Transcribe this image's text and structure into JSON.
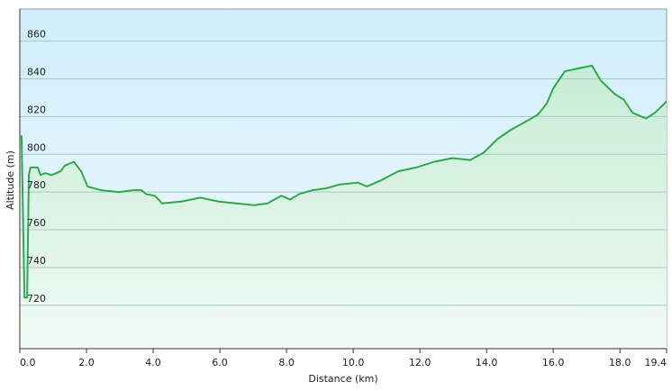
{
  "chart_data": {
    "type": "area",
    "x_label": "Distance  (km)",
    "y_label": "Altitude (m)",
    "x": [
      0.05,
      0.14,
      0.22,
      0.27,
      0.32,
      0.54,
      0.62,
      0.76,
      0.95,
      1.22,
      1.35,
      1.62,
      1.84,
      2.03,
      2.43,
      2.97,
      3.38,
      3.65,
      3.78,
      4.05,
      4.27,
      4.86,
      5.41,
      5.95,
      6.49,
      7.03,
      7.43,
      7.84,
      8.11,
      8.38,
      8.78,
      9.19,
      9.59,
      10.14,
      10.41,
      10.81,
      11.35,
      11.89,
      12.43,
      12.97,
      13.51,
      13.92,
      14.32,
      14.73,
      15.14,
      15.54,
      15.81,
      16.0,
      16.35,
      16.62,
      16.89,
      17.16,
      17.43,
      17.84,
      18.11,
      18.38,
      18.78,
      19.05,
      19.4
    ],
    "series": [
      {
        "name": "Altitude",
        "color": "#2eaa4a",
        "values": [
          810,
          724,
          724,
          789,
          793,
          793,
          789,
          790,
          789,
          791,
          794,
          796,
          791,
          783,
          781,
          780,
          781,
          781,
          779,
          778,
          774,
          775,
          777,
          775,
          774,
          773,
          774,
          778,
          776,
          779,
          781,
          782,
          784,
          785,
          783,
          786,
          791,
          793,
          796,
          798,
          797,
          801,
          808,
          813,
          817,
          821,
          827,
          835,
          844,
          845,
          846,
          847,
          839,
          832,
          829,
          822,
          819,
          822,
          828
        ]
      }
    ],
    "xlim": [
      0,
      19.4
    ],
    "xticks": [
      {
        "value": 0,
        "label": "0.0"
      },
      {
        "value": 2,
        "label": "2.0"
      },
      {
        "value": 4,
        "label": "4.0"
      },
      {
        "value": 6,
        "label": "6.0"
      },
      {
        "value": 8,
        "label": "8.0"
      },
      {
        "value": 10,
        "label": "10.0"
      },
      {
        "value": 12,
        "label": "12.0"
      },
      {
        "value": 14,
        "label": "14.0"
      },
      {
        "value": 16,
        "label": "16.0"
      },
      {
        "value": 18,
        "label": "18.0"
      },
      19.4
    ],
    "ylim": [
      697,
      877
    ],
    "yticks": [
      720,
      740,
      760,
      780,
      800,
      820,
      840,
      860
    ],
    "grid": true
  }
}
